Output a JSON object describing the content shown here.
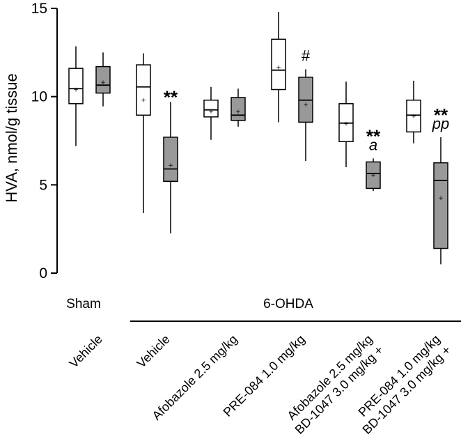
{
  "chart_data": {
    "type": "box",
    "ylabel": "HVA, nmol/g tissue",
    "ylim": [
      0,
      15
    ],
    "yticks": [
      0,
      5,
      10,
      15
    ],
    "group_labels": [
      {
        "label": "Sham",
        "span": [
          0,
          0
        ]
      },
      {
        "label": "6-OHDA",
        "span": [
          1,
          5
        ]
      }
    ],
    "categories": [
      {
        "label": "Vehicle",
        "lines": [
          "Vehicle"
        ]
      },
      {
        "label": "Vehicle",
        "lines": [
          "Vehicle"
        ]
      },
      {
        "label": "Afobazole 2.5 mg/kg",
        "lines": [
          "Afobazole 2.5 mg/kg"
        ]
      },
      {
        "label": "PRE-084 1.0 mg/kg",
        "lines": [
          "PRE-084 1.0 mg/kg"
        ]
      },
      {
        "label": "BD-1047 3.0 mg/kg + Afobazole 2.5 mg/kg",
        "lines": [
          "BD-1047 3.0 mg/kg +",
          "Afobazole 2.5 mg/kg"
        ]
      },
      {
        "label": "BD-1047 3.0 mg/kg + PRE-084 1.0 mg/kg",
        "lines": [
          "BD-1047 3.0 mg/kg +",
          "PRE-084 1.0 mg/kg"
        ]
      }
    ],
    "series": [
      {
        "fill": "#ffffff",
        "boxes": [
          {
            "min": 7.2,
            "q1": 9.6,
            "median": 10.45,
            "q3": 11.6,
            "max": 12.85,
            "mean": 10.45
          },
          {
            "min": 3.4,
            "q1": 8.95,
            "median": 10.55,
            "q3": 11.8,
            "max": 12.45,
            "mean": 9.85
          },
          {
            "min": 7.55,
            "q1": 8.85,
            "median": 9.25,
            "q3": 9.8,
            "max": 10.55,
            "mean": 9.2
          },
          {
            "min": 8.55,
            "q1": 10.4,
            "median": 11.5,
            "q3": 13.25,
            "max": 14.8,
            "mean": 11.7
          },
          {
            "min": 6.0,
            "q1": 7.45,
            "median": 8.5,
            "q3": 9.6,
            "max": 10.85,
            "mean": 8.5
          },
          {
            "min": 7.35,
            "q1": 8.0,
            "median": 8.95,
            "q3": 9.8,
            "max": 10.9,
            "mean": 8.95
          }
        ]
      },
      {
        "fill": "#999999",
        "boxes": [
          {
            "min": 9.45,
            "q1": 10.2,
            "median": 10.65,
            "q3": 11.7,
            "max": 12.5,
            "mean": 10.85
          },
          {
            "min": 2.25,
            "q1": 5.2,
            "median": 5.9,
            "q3": 7.7,
            "max": 9.7,
            "mean": 6.15
          },
          {
            "min": 8.3,
            "q1": 8.65,
            "median": 8.95,
            "q3": 9.95,
            "max": 10.45,
            "mean": 9.2
          },
          {
            "min": 6.35,
            "q1": 8.55,
            "median": 9.8,
            "q3": 11.1,
            "max": 11.55,
            "mean": 9.6
          },
          {
            "min": 4.65,
            "q1": 4.8,
            "median": 5.65,
            "q3": 6.3,
            "max": 6.5,
            "mean": 5.6
          },
          {
            "min": 0.5,
            "q1": 1.4,
            "median": 5.25,
            "q3": 6.25,
            "max": 7.7,
            "mean": 4.3
          }
        ]
      }
    ],
    "annotations": [
      {
        "category": 1,
        "series": 1,
        "lines": [
          "**"
        ]
      },
      {
        "category": 3,
        "series": 1,
        "lines": [
          "#"
        ]
      },
      {
        "category": 4,
        "series": 1,
        "lines": [
          "**",
          "a"
        ]
      },
      {
        "category": 5,
        "series": 1,
        "lines": [
          "**",
          "pp"
        ]
      }
    ],
    "grid": false
  }
}
